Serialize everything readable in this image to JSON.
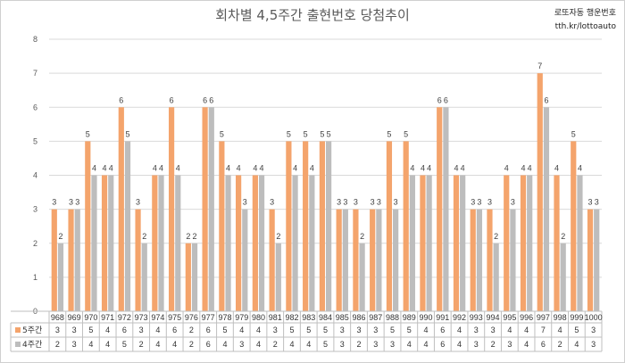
{
  "chart_data": {
    "type": "bar",
    "title": "회차별 4,5주간 출현번호 당첨추이",
    "brand_line1": "로또자동 행운번호",
    "brand_line2": "tth.kr/lottoauto",
    "ylim": [
      0,
      8
    ],
    "yticks": [
      0,
      1,
      2,
      3,
      4,
      5,
      6,
      7,
      8
    ],
    "grid": true,
    "data_table": true,
    "categories": [
      "968",
      "969",
      "970",
      "971",
      "972",
      "973",
      "974",
      "975",
      "976",
      "977",
      "978",
      "979",
      "980",
      "981",
      "982",
      "983",
      "984",
      "985",
      "986",
      "987",
      "988",
      "989",
      "990",
      "991",
      "992",
      "993",
      "994",
      "995",
      "996",
      "997",
      "998",
      "999",
      "1000"
    ],
    "series": [
      {
        "name": "5주간",
        "color": "#F4A46C",
        "values": [
          3,
          3,
          5,
          4,
          6,
          3,
          4,
          6,
          2,
          6,
          5,
          4,
          4,
          3,
          5,
          5,
          5,
          3,
          3,
          3,
          5,
          5,
          4,
          6,
          4,
          3,
          3,
          4,
          4,
          7,
          4,
          5,
          3
        ]
      },
      {
        "name": "4주간",
        "color": "#BDBDBD",
        "values": [
          2,
          3,
          4,
          4,
          5,
          2,
          4,
          4,
          2,
          6,
          4,
          3,
          4,
          2,
          4,
          4,
          5,
          3,
          2,
          3,
          3,
          4,
          4,
          6,
          4,
          3,
          2,
          3,
          4,
          6,
          2,
          4,
          3
        ]
      }
    ]
  }
}
